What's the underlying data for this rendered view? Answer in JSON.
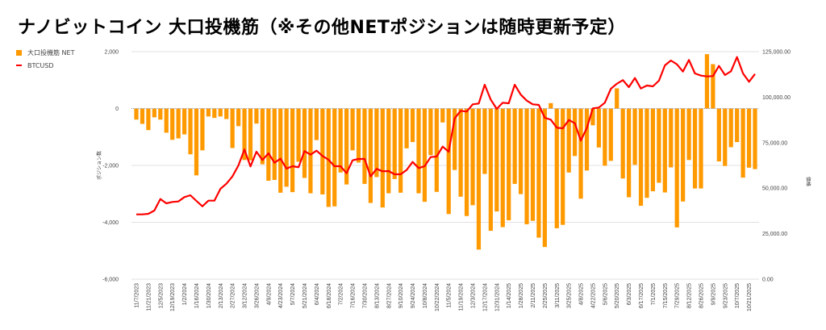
{
  "title": "ナノビットコイン 大口投機筋（※その他NETポジションは随時更新予定）",
  "legend": {
    "bar_label": "大口投機筋  NET",
    "line_label": "BTCUSD"
  },
  "colors": {
    "bar": "#ff9900",
    "line": "#ff0000",
    "grid": "#e0e0e0"
  },
  "chart_data": {
    "type": "bar+line",
    "title": "ナノビットコイン 大口投機筋（※その他NETポジションは随時更新予定）",
    "ylabel_left": "ポジション数",
    "ylabel_right": "価格",
    "ylim_left": [
      -6000,
      2000
    ],
    "ylim_right": [
      0,
      125000
    ],
    "yticks_left": [
      "2,000",
      "0",
      "-2,000",
      "-4,000",
      "-6,000"
    ],
    "yticks_left_values": [
      2000,
      0,
      -2000,
      -4000,
      -6000
    ],
    "yticks_right": [
      "125,000.00",
      "100,000.00",
      "75,000.00",
      "50,000.00",
      "25,000.00",
      "0.00"
    ],
    "yticks_right_values": [
      125000,
      100000,
      75000,
      50000,
      25000,
      0
    ],
    "grid": true,
    "legend_position": "top-left",
    "x": [
      "11/7/2023",
      "11/14/2023",
      "11/21/2023",
      "11/28/2023",
      "12/5/2023",
      "12/12/2023",
      "12/19/2023",
      "12/26/2023",
      "1/2/2024",
      "1/9/2024",
      "1/16/2024",
      "1/23/2024",
      "1/30/2024",
      "2/6/2024",
      "2/13/2024",
      "2/20/2024",
      "2/27/2024",
      "3/5/2024",
      "3/12/2024",
      "3/19/2024",
      "3/26/2024",
      "4/2/2024",
      "4/9/2024",
      "4/16/2024",
      "4/23/2024",
      "4/30/2024",
      "5/7/2024",
      "5/14/2024",
      "5/21/2024",
      "5/28/2024",
      "6/4/2024",
      "6/11/2024",
      "6/18/2024",
      "6/25/2024",
      "7/2/2024",
      "7/9/2024",
      "7/16/2024",
      "7/23/2024",
      "7/30/2024",
      "8/6/2024",
      "8/13/2024",
      "8/20/2024",
      "8/27/2024",
      "9/3/2024",
      "9/10/2024",
      "9/17/2024",
      "9/24/2024",
      "10/1/2024",
      "10/8/2024",
      "10/15/2024",
      "10/22/2024",
      "10/29/2024",
      "11/5/2024",
      "11/12/2024",
      "11/19/2024",
      "11/26/2024",
      "12/3/2024",
      "12/10/2024",
      "12/17/2024",
      "12/24/2024",
      "12/31/2024",
      "1/7/2025",
      "1/14/2025",
      "1/21/2025",
      "1/28/2025",
      "2/4/2025",
      "2/11/2025",
      "2/18/2025",
      "2/25/2025",
      "3/4/2025",
      "3/11/2025",
      "3/18/2025",
      "3/25/2025",
      "4/1/2025",
      "4/8/2025",
      "4/15/2025",
      "4/22/2025",
      "4/29/2025",
      "5/6/2025",
      "5/13/2025",
      "5/20/2025",
      "5/27/2025",
      "6/3/2025",
      "6/10/2025",
      "6/17/2025",
      "6/24/2025",
      "7/1/2025",
      "7/8/2025",
      "7/15/2025",
      "7/22/2025",
      "7/29/2025",
      "8/5/2025",
      "8/12/2025",
      "8/19/2025",
      "8/26/2025",
      "9/2/2025",
      "9/9/2025",
      "9/16/2025",
      "9/23/2025",
      "9/30/2025",
      "10/7/2025",
      "10/14/2025",
      "10/21/2025",
      "10/28/2025"
    ],
    "series": [
      {
        "name": "大口投機筋  NET",
        "type": "bar",
        "axis": "left",
        "values": [
          -390,
          -540,
          -760,
          -310,
          -390,
          -850,
          -1100,
          -1050,
          -910,
          -1610,
          -2350,
          -1470,
          -280,
          -330,
          -280,
          -370,
          -1390,
          -620,
          -1810,
          -1820,
          -530,
          -1960,
          -2540,
          -2510,
          -2960,
          -2750,
          -2940,
          -1870,
          -2440,
          -2980,
          -1110,
          -3020,
          -3460,
          -3440,
          -2250,
          -2670,
          -1470,
          -1900,
          -2650,
          -3320,
          -2410,
          -3480,
          -2980,
          -2480,
          -2960,
          -1400,
          -1180,
          -2980,
          -3280,
          -1640,
          -2930,
          -490,
          -3710,
          -2160,
          -3100,
          -3780,
          -3400,
          -4960,
          -2300,
          -4300,
          -3620,
          -4170,
          -3930,
          -2650,
          -3010,
          -4070,
          -3950,
          -4540,
          -4870,
          190,
          -4210,
          -4090,
          -2250,
          -1670,
          -3170,
          -2180,
          -590,
          -1370,
          -2010,
          -1840,
          710,
          -2460,
          -3120,
          -1980,
          -3420,
          -3140,
          -2910,
          -2610,
          -2950,
          -2070,
          -4180,
          -3270,
          -1810,
          -2810,
          -2810,
          1910,
          1560,
          -1860,
          -2020,
          -1360,
          -1180,
          -2430,
          -2080,
          -2130
        ]
      },
      {
        "name": "BTCUSD",
        "type": "line",
        "axis": "right",
        "values": [
          35590,
          35590,
          35900,
          37670,
          44000,
          41660,
          42410,
          42690,
          45080,
          46100,
          42990,
          40030,
          43130,
          43130,
          49640,
          52440,
          56430,
          62500,
          71220,
          61920,
          70030,
          65460,
          69140,
          63950,
          66170,
          60720,
          62050,
          61470,
          70330,
          68390,
          70600,
          67680,
          65590,
          62050,
          62050,
          58190,
          65280,
          66040,
          66040,
          56420,
          60590,
          59260,
          59390,
          57620,
          57620,
          59970,
          64400,
          61030,
          62050,
          67060,
          67360,
          72820,
          70000,
          88330,
          92500,
          92050,
          96040,
          96480,
          106810,
          98700,
          93520,
          96930,
          96620,
          106810,
          101360,
          98080,
          96040,
          95730,
          88640,
          87620,
          83190,
          82880,
          87440,
          85670,
          76100,
          83010,
          93830,
          94270,
          96930,
          104600,
          107380,
          109340,
          105480,
          110490,
          104730,
          106370,
          105930,
          109030,
          117450,
          120110,
          118030,
          114040,
          120420,
          113020,
          111820,
          111380,
          111560,
          117140,
          112130,
          114210,
          122010,
          113020,
          108450,
          112710
        ]
      }
    ]
  }
}
